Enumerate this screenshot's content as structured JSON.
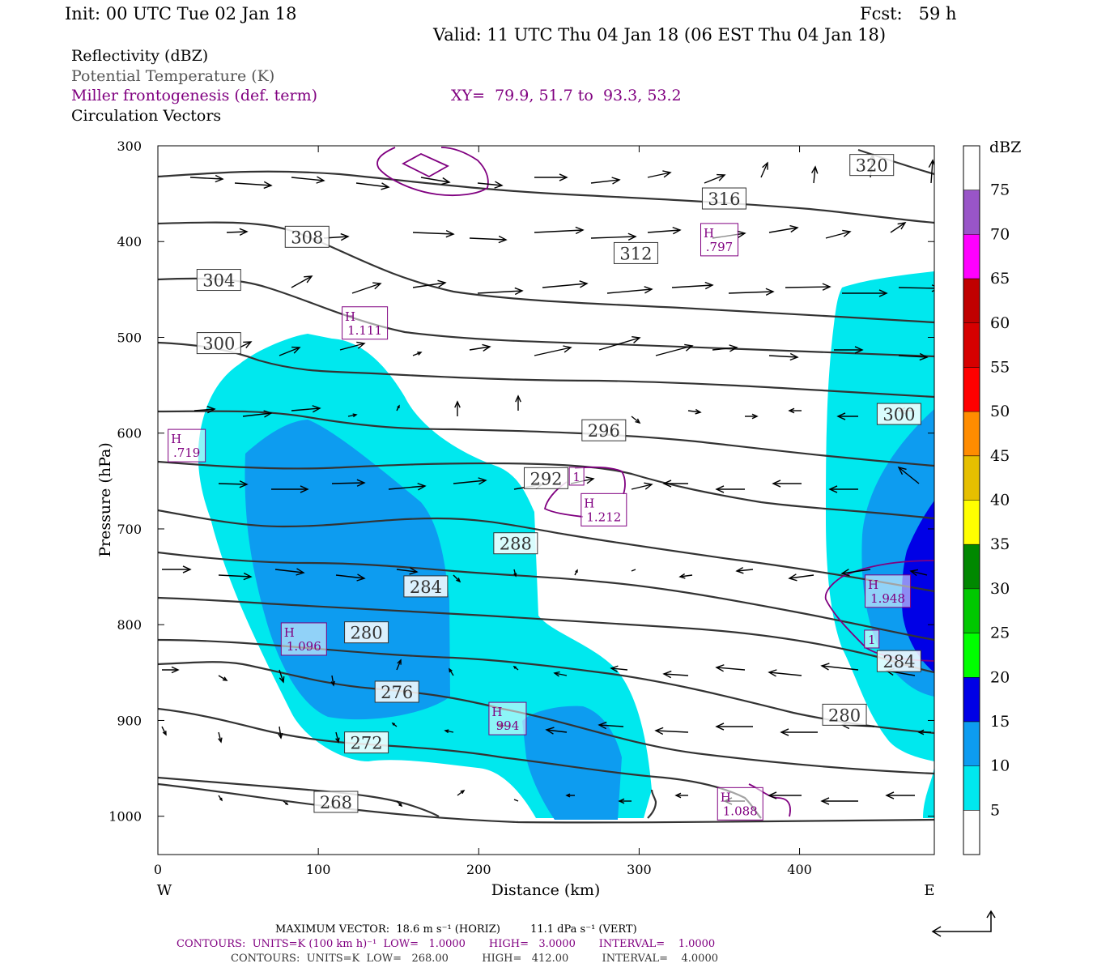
{
  "header": {
    "init": "Init: 00 UTC Tue 02 Jan 18",
    "fcst": "Fcst:   59 h",
    "valid": "Valid: 11 UTC Thu 04 Jan 18 (06 EST Thu 04 Jan 18)"
  },
  "legend": {
    "reflectivity": "Reflectivity (dBZ)",
    "theta": "Potential Temperature (K)",
    "frontogenesis": "Miller frontogenesis (def. term)",
    "xy": "XY=  79.9, 51.7 to  93.3, 53.2",
    "vectors": "Circulation Vectors"
  },
  "footer": {
    "vector_line": "MAXIMUM VECTOR:  18.6 m s⁻¹ (HORIZ)         11.1 dPa s⁻¹ (VERT)",
    "contour_purple": "CONTOURS:  UNITS=K (100 km h)⁻¹  LOW=   1.0000       HIGH=   3.0000       INTERVAL=    1.0000",
    "contour_black": "CONTOURS:  UNITS=K  LOW=   268.00          HIGH=   412.00          INTERVAL=    4.0000"
  },
  "colors": {
    "refl_5": "#00e8ee",
    "refl_10": "#0d9cf0",
    "refl_15": "#0000e6",
    "theta": "#333333",
    "fronto": "#800080"
  },
  "chart_data": {
    "type": "cross-section",
    "xlabel": "Distance (km)",
    "ylabel": "Pressure (hPa)",
    "xlim": [
      0,
      484
    ],
    "ylim": [
      1040,
      300
    ],
    "x_ticks": [
      0,
      100,
      200,
      300,
      400
    ],
    "y_ticks": [
      300,
      400,
      500,
      600,
      700,
      800,
      900,
      1000
    ],
    "x_end_labels": {
      "left": "W",
      "right": "E"
    },
    "colorbar": {
      "title": "dBZ",
      "levels": [
        5,
        10,
        15,
        20,
        25,
        30,
        35,
        40,
        45,
        50,
        55,
        60,
        65,
        70,
        75
      ],
      "colors": [
        "#ffffff",
        "#00e8ee",
        "#0d9cf0",
        "#0000e6",
        "#00ff00",
        "#00c800",
        "#008800",
        "#ffff00",
        "#e6bf00",
        "#ff8c00",
        "#ff0000",
        "#d60000",
        "#c00000",
        "#ff00ff",
        "#9955c8",
        "#ffffff"
      ]
    },
    "theta_labels": [
      {
        "text": "320",
        "x": 445,
        "p": 320
      },
      {
        "text": "316",
        "x": 353,
        "p": 355
      },
      {
        "text": "312",
        "x": 298,
        "p": 412
      },
      {
        "text": "308",
        "x": 93,
        "p": 395
      },
      {
        "text": "304",
        "x": 38,
        "p": 440
      },
      {
        "text": "300",
        "x": 38,
        "p": 506
      },
      {
        "text": "300",
        "x": 462,
        "p": 580
      },
      {
        "text": "296",
        "x": 278,
        "p": 597
      },
      {
        "text": "292",
        "x": 242,
        "p": 647
      },
      {
        "text": "288",
        "x": 223,
        "p": 715
      },
      {
        "text": "284",
        "x": 167,
        "p": 760
      },
      {
        "text": "284",
        "x": 462,
        "p": 838
      },
      {
        "text": "280",
        "x": 130,
        "p": 808
      },
      {
        "text": "280",
        "x": 428,
        "p": 894
      },
      {
        "text": "276",
        "x": 149,
        "p": 870
      },
      {
        "text": "272",
        "x": 130,
        "p": 923
      },
      {
        "text": "268",
        "x": 111,
        "p": 985
      }
    ],
    "fronto_labels": [
      {
        "text": [
          "H",
          ".797"
        ],
        "x": 350,
        "p": 398
      },
      {
        "text": [
          "H",
          "1.111"
        ],
        "x": 129,
        "p": 485
      },
      {
        "text": [
          "H",
          ".719"
        ],
        "x": 18,
        "p": 613
      },
      {
        "text": [
          "1"
        ],
        "x": 261,
        "p": 645
      },
      {
        "text": [
          "H",
          "1.212"
        ],
        "x": 278,
        "p": 680
      },
      {
        "text": [
          "H",
          "1.948"
        ],
        "x": 455,
        "p": 765
      },
      {
        "text": [
          "1"
        ],
        "x": 445,
        "p": 815
      },
      {
        "text": [
          "H",
          "1.096"
        ],
        "x": 91,
        "p": 815
      },
      {
        "text": [
          "H",
          "994"
        ],
        "x": 218,
        "p": 898
      },
      {
        "text": [
          "H",
          "1.088"
        ],
        "x": 363,
        "p": 987
      }
    ]
  }
}
